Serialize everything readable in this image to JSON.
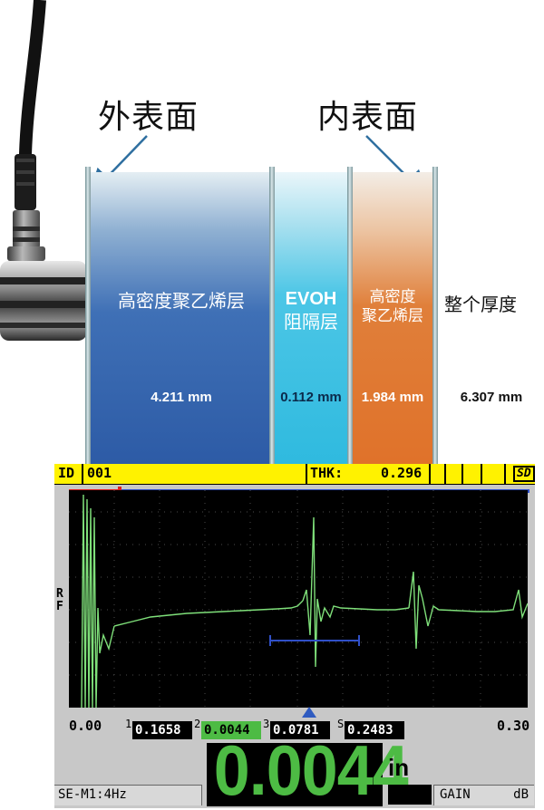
{
  "diagram": {
    "outer_surface_label": "外表面",
    "inner_surface_label": "内表面",
    "layers": [
      {
        "name": "高密度聚乙烯层",
        "thickness": "4.211 mm",
        "color": "#2e5ea8"
      },
      {
        "name_line1": "EVOH",
        "name_line2": "阻隔层",
        "thickness": "0.112 mm",
        "color": "#3dbfe0"
      },
      {
        "name_line1": "高密度",
        "name_line2": "聚乙烯层",
        "thickness": "1.984 mm",
        "color": "#e07a32"
      }
    ],
    "total": {
      "name": "整个厚度",
      "thickness": "6.307 mm"
    }
  },
  "instrument": {
    "id_label": "ID",
    "id_value": "001",
    "thk_label": "THK:",
    "thk_value": "0.296",
    "sd_badge": "SD",
    "rf_label_1": "R",
    "rf_label_2": "F",
    "axis_min": "0.00",
    "axis_max": "0.30",
    "gates": [
      {
        "index": "1",
        "value": "0.1658",
        "selected": false
      },
      {
        "index": "2",
        "value": "0.0044",
        "selected": true
      },
      {
        "index": "3",
        "value": "0.0781",
        "selected": false
      },
      {
        "index": "S",
        "value": "0.2483",
        "selected": false
      }
    ],
    "main_reading": "0.0044",
    "unit": "in",
    "transducer": "SE-M1:4Hz",
    "gain_label": "GAIN",
    "gain_unit": "dB",
    "colors": {
      "yellow": "#fff200",
      "green": "#4dbb44",
      "trace": "#7fe07a",
      "blue_line": "#3050c8",
      "red_line": "#e02020"
    }
  }
}
